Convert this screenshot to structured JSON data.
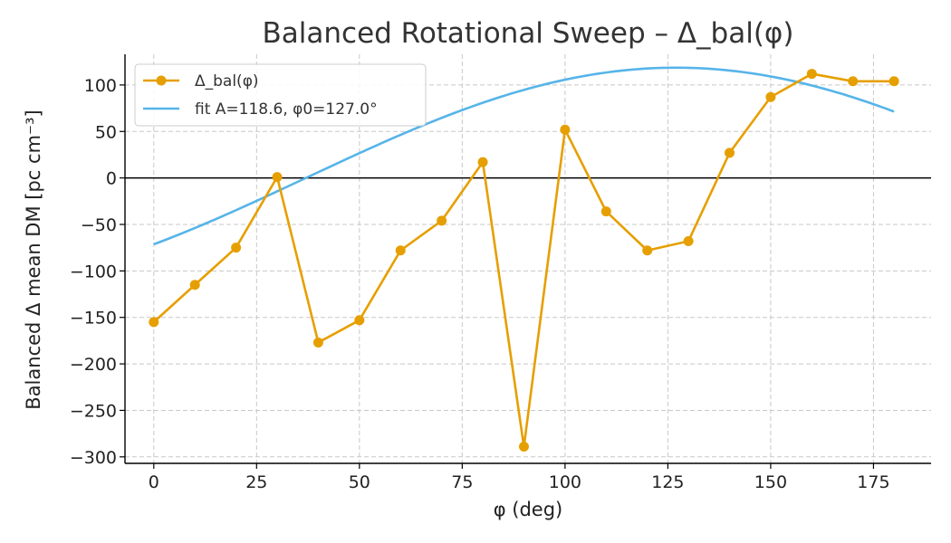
{
  "chart_data": {
    "type": "line",
    "title": "Balanced Rotational Sweep – Δ_bal(φ)",
    "xlabel": "φ (deg)",
    "ylabel": "Balanced Δ mean DM [pc cm⁻³]",
    "xlim": [
      -7,
      189
    ],
    "ylim": [
      -307,
      133
    ],
    "xticks": [
      0,
      25,
      50,
      75,
      100,
      125,
      150,
      175
    ],
    "yticks": [
      100,
      50,
      0,
      -50,
      -100,
      -150,
      -200,
      -250,
      -300
    ],
    "tick_labels": {
      "x": [
        "0",
        "25",
        "50",
        "75",
        "100",
        "125",
        "150",
        "175"
      ],
      "y": [
        "100",
        "50",
        "0",
        "−50",
        "−100",
        "−150",
        "−200",
        "−250",
        "−300"
      ]
    },
    "grid": true,
    "zero_line": true,
    "legend_position": "top-left",
    "series": [
      {
        "name": "Δ_bal(φ)",
        "color": "#E69F00",
        "marker": "circle",
        "x": [
          0,
          10,
          20,
          30,
          40,
          50,
          60,
          70,
          80,
          90,
          100,
          110,
          120,
          130,
          140,
          150,
          160,
          170,
          180
        ],
        "values": [
          -155,
          -115,
          -75,
          1,
          -177,
          -153,
          -78,
          -46,
          17,
          -289,
          52,
          -36,
          -78,
          -68,
          27,
          87,
          112,
          104,
          104
        ]
      },
      {
        "name": "fit A=118.6, φ0=127.0°",
        "color": "#56B4E9",
        "marker": "none",
        "fit": {
          "A": 118.6,
          "phi0": 127.0
        }
      }
    ]
  }
}
